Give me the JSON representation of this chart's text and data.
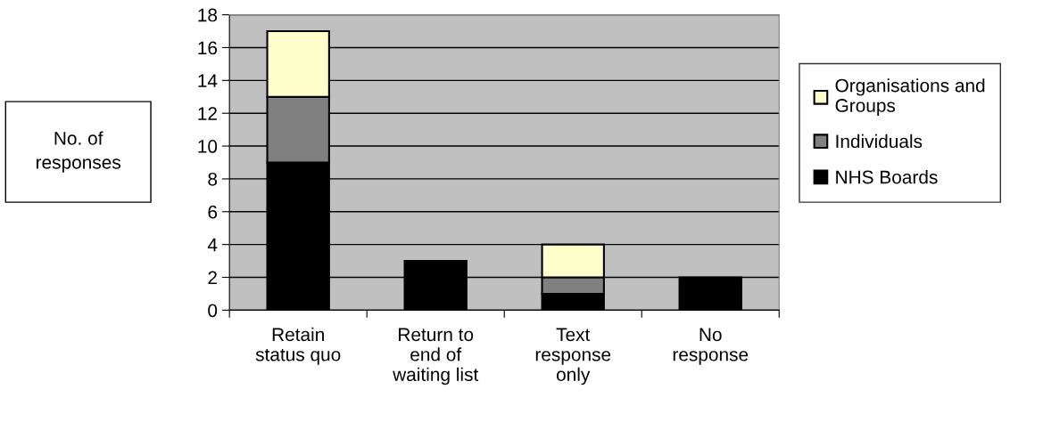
{
  "chart_data": {
    "type": "bar",
    "stacked": true,
    "ylabel": "No. of\nresponses",
    "categories": [
      "Retain\nstatus quo",
      "Return to\nend of\nwaiting list",
      "Text\nresponse\nonly",
      "No\nresponse"
    ],
    "series": [
      {
        "name": "NHS Boards",
        "color": "#000000",
        "values": [
          9,
          3,
          1,
          2
        ]
      },
      {
        "name": "Individuals",
        "color": "#808080",
        "values": [
          4,
          0,
          1,
          0
        ]
      },
      {
        "name": "Organisations and\nGroups",
        "color": "#ffffcc",
        "values": [
          4,
          0,
          2,
          0
        ]
      }
    ],
    "ylim": [
      0,
      18
    ],
    "yticks": [
      0,
      2,
      4,
      6,
      8,
      10,
      12,
      14,
      16,
      18
    ],
    "grid": "y",
    "legend": "right"
  }
}
